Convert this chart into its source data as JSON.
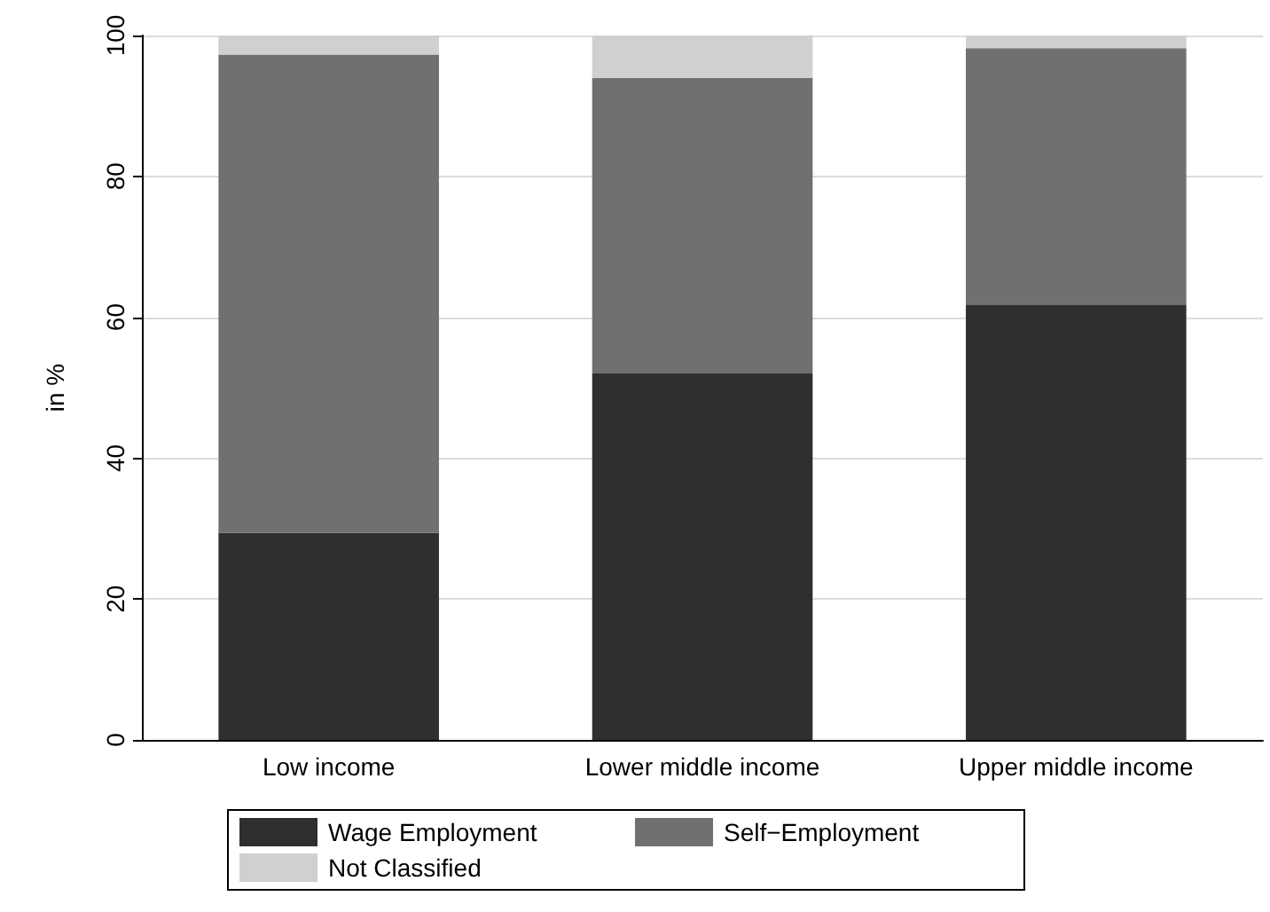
{
  "chart_data": {
    "type": "bar",
    "stacked": true,
    "ylabel": "in %",
    "categories": [
      "Low income",
      "Lower middle income",
      "Upper middle income"
    ],
    "series": [
      {
        "name": "Wage Employment",
        "color": "#2f2f2f",
        "values": [
          29.4,
          52.0,
          61.8
        ]
      },
      {
        "name": "Self−Employment",
        "color": "#707070",
        "values": [
          67.9,
          42.0,
          36.4
        ]
      },
      {
        "name": "Not Classified",
        "color": "#d0d0d0",
        "values": [
          2.7,
          6.0,
          1.8
        ]
      }
    ],
    "ylim": [
      0,
      100
    ],
    "yticks": [
      0,
      20,
      40,
      60,
      80,
      100
    ],
    "grid": "y",
    "legend": "bottom"
  }
}
